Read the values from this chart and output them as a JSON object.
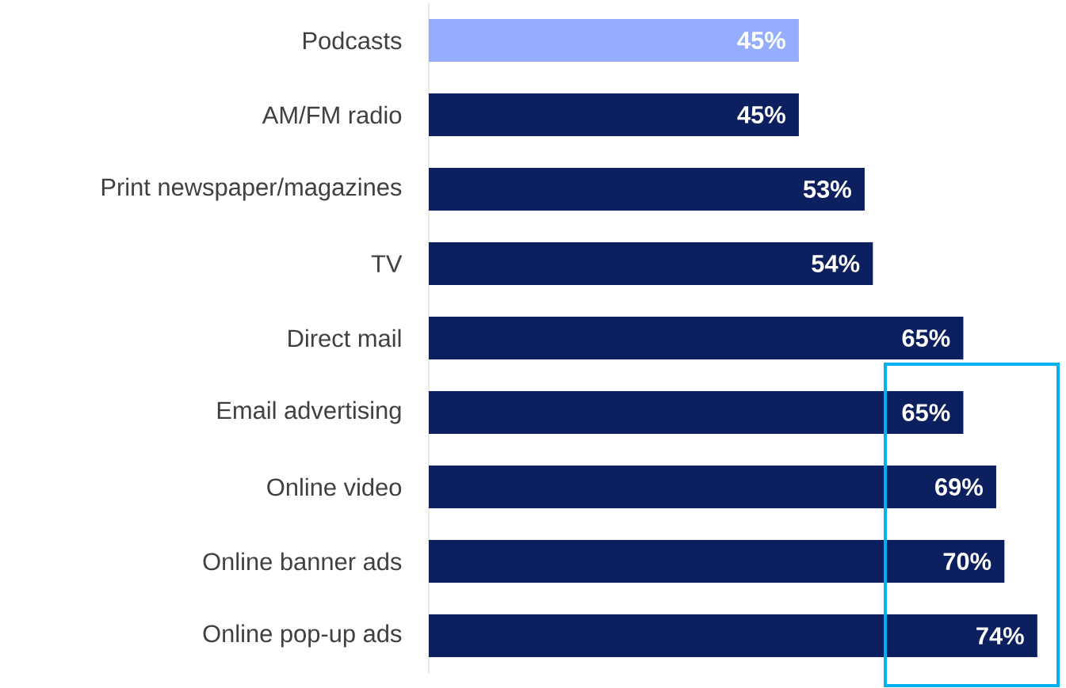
{
  "chart_data": {
    "type": "bar",
    "orientation": "horizontal",
    "categories": [
      "Podcasts",
      "AM/FM radio",
      "Print newspaper/magazines",
      "TV",
      "Direct mail",
      "Email advertising",
      "Online video",
      "Online banner ads",
      "Online pop-up ads"
    ],
    "values": [
      45,
      45,
      53,
      54,
      65,
      65,
      69,
      70,
      74
    ],
    "colors": [
      "#94adfc",
      "#0c1f5e",
      "#0c1f5e",
      "#0c1f5e",
      "#0c1f5e",
      "#0c1f5e",
      "#0c1f5e",
      "#0c1f5e",
      "#0c1f5e"
    ],
    "value_labels": [
      "45%",
      "45%",
      "53%",
      "54%",
      "65%",
      "65%",
      "69%",
      "70%",
      "74%"
    ],
    "tick_labels": "y"
  }
}
